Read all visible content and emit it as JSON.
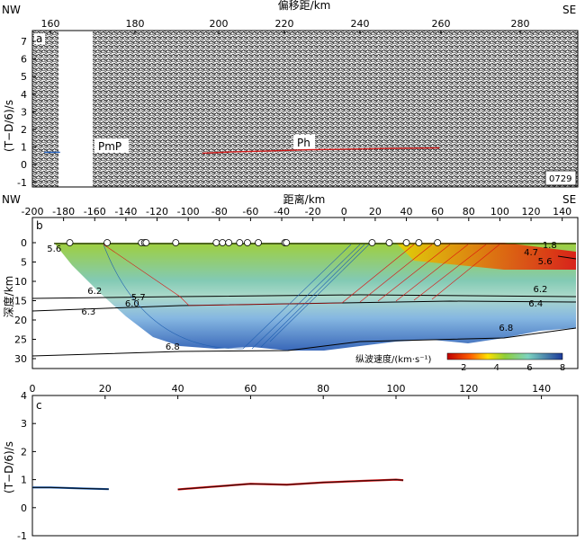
{
  "panel_a": {
    "panel_letter": "a",
    "top_axis_title": "偏移距/km",
    "left_dir": "NW",
    "right_dir": "SE",
    "x_ticks": [
      "160",
      "180",
      "200",
      "220",
      "240",
      "260",
      "280"
    ],
    "y_ticks": [
      "7",
      "6",
      "5",
      "4",
      "3",
      "2",
      "1",
      "0",
      "-1"
    ],
    "y_label": "(T−D/6)/s",
    "phase_pmp": "PmP",
    "phase_ph": "Ph",
    "station": "0729"
  },
  "panel_b": {
    "panel_letter": "b",
    "top_axis_title": "距离/km",
    "left_dir": "NW",
    "right_dir": "SE",
    "x_ticks": [
      "-200",
      "-180",
      "-160",
      "-140",
      "-120",
      "-100",
      "-80",
      "-60",
      "-40",
      "-20",
      "0",
      "20",
      "40",
      "60",
      "80",
      "100",
      "120",
      "140"
    ],
    "y_ticks": [
      "0",
      "5",
      "10",
      "15",
      "20",
      "25",
      "30"
    ],
    "y_label": "深度/km",
    "velocity_labels": [
      "5.6",
      "6.2",
      "5.7",
      "6.0",
      "6.3",
      "6.8",
      "4.7",
      "1.8",
      "5.6",
      "6.2",
      "6.4",
      "6.8"
    ],
    "colorbar_title": "纵波速度/(km·s⁻¹)",
    "colorbar_ticks": [
      "2",
      "4",
      "6",
      "8"
    ]
  },
  "panel_c": {
    "panel_letter": "c",
    "x_ticks": [
      "0",
      "20",
      "40",
      "60",
      "80",
      "100",
      "120",
      "140"
    ],
    "y_ticks": [
      "4",
      "3",
      "2",
      "1",
      "0",
      "-1"
    ],
    "y_label": "(T−D/6)/s"
  },
  "chart_data": [
    {
      "type": "line",
      "panel": "a",
      "description_free": true,
      "xlim": [
        155,
        293
      ],
      "ylim": [
        -1,
        8
      ],
      "series": [
        {
          "name": "PmP",
          "x": [
            158,
            162
          ],
          "values": [
            0.7,
            0.7
          ]
        },
        {
          "name": "Ph",
          "x": [
            198,
            205,
            215,
            225,
            235,
            245,
            258
          ],
          "values": [
            0.65,
            0.72,
            0.78,
            0.85,
            0.88,
            0.92,
            0.95
          ]
        }
      ]
    },
    {
      "type": "line",
      "panel": "c",
      "xlim": [
        0,
        150
      ],
      "ylim": [
        -1,
        4
      ],
      "series": [
        {
          "x": [
            0,
            5,
            10,
            15,
            21
          ],
          "values": [
            0.72,
            0.72,
            0.7,
            0.68,
            0.66
          ]
        },
        {
          "x": [
            40,
            50,
            60,
            70,
            80,
            90,
            100,
            102
          ],
          "values": [
            0.65,
            0.75,
            0.85,
            0.82,
            0.9,
            0.95,
            1.0,
            0.98
          ]
        }
      ]
    }
  ]
}
